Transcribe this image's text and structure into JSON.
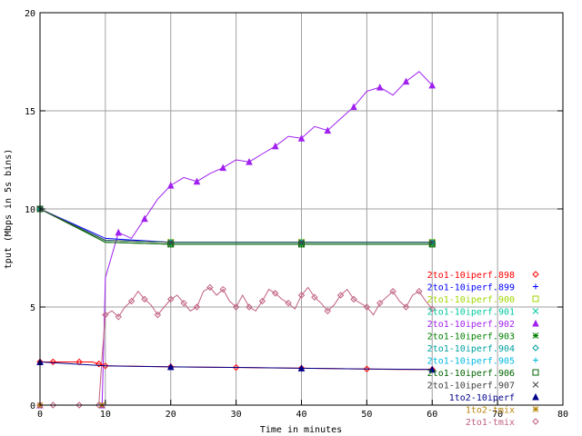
{
  "chart_data": {
    "type": "line",
    "title": "",
    "xlabel": "Time in minutes",
    "ylabel": "tput (Mbps in 5s bins)",
    "xlim": [
      0,
      80
    ],
    "ylim": [
      0,
      20
    ],
    "x_ticks": [
      0,
      10,
      20,
      30,
      40,
      50,
      60,
      70,
      80
    ],
    "y_ticks": [
      0,
      5,
      10,
      15,
      20
    ],
    "grid": true,
    "legend_position": "right",
    "series": [
      {
        "name": "2to1-10iperf.898",
        "color": "#ff0000",
        "marker": "diamond",
        "x": [
          0,
          1,
          2,
          4,
          6,
          8,
          9,
          9.5,
          10,
          15,
          20,
          25,
          30,
          35,
          40,
          45,
          50,
          55,
          60
        ],
        "y": [
          2.2,
          2.2,
          2.2,
          2.2,
          2.2,
          2.2,
          2.1,
          2.05,
          2.0,
          1.98,
          1.95,
          1.93,
          1.92,
          1.9,
          1.88,
          1.86,
          1.84,
          1.82,
          1.82
        ]
      },
      {
        "name": "2to1-10iperf.899",
        "color": "#0000ff",
        "marker": "plus",
        "x": [
          0,
          10,
          20,
          30,
          40,
          50,
          60
        ],
        "y": [
          10,
          8.5,
          8.3,
          8.3,
          8.3,
          8.3,
          8.3
        ]
      },
      {
        "name": "2to1-10iperf.900",
        "color": "#a0d800",
        "marker": "square",
        "x": [
          0,
          10,
          20,
          30,
          40,
          50,
          60
        ],
        "y": [
          10,
          8.4,
          8.3,
          8.3,
          8.3,
          8.3,
          8.3
        ]
      },
      {
        "name": "2to1-10iperf.901",
        "color": "#00c8a0",
        "marker": "x",
        "x": [
          0,
          10,
          20,
          30,
          40,
          50,
          60
        ],
        "y": [
          10,
          8.4,
          8.3,
          8.3,
          8.3,
          8.3,
          8.3
        ]
      },
      {
        "name": "2to1-10iperf.902",
        "color": "#a020f0",
        "marker": "triangle",
        "x": [
          0,
          8,
          9.5,
          10,
          12,
          14,
          16,
          18,
          20,
          22,
          24,
          26,
          28,
          30,
          32,
          34,
          36,
          38,
          40,
          42,
          44,
          46,
          48,
          50,
          52,
          54,
          56,
          58,
          60
        ],
        "y": [
          0,
          0,
          0,
          6.5,
          8.8,
          8.5,
          9.5,
          10.5,
          11.2,
          11.6,
          11.4,
          11.8,
          12.1,
          12.5,
          12.4,
          12.8,
          13.2,
          13.7,
          13.6,
          14.2,
          14.0,
          14.6,
          15.2,
          16.0,
          16.2,
          15.8,
          16.5,
          17.0,
          16.3
        ]
      },
      {
        "name": "2to1-10iperf.903",
        "color": "#008000",
        "marker": "asterisk",
        "x": [
          0,
          10,
          20,
          30,
          40,
          50,
          60
        ],
        "y": [
          10,
          8.3,
          8.2,
          8.2,
          8.2,
          8.2,
          8.2
        ]
      },
      {
        "name": "2to1-10iperf.904",
        "color": "#00a0a0",
        "marker": "diamond",
        "x": [
          0,
          10,
          20,
          30,
          40,
          50,
          60
        ],
        "y": [
          10,
          8.4,
          8.3,
          8.3,
          8.3,
          8.3,
          8.3
        ]
      },
      {
        "name": "2to1-10iperf.905",
        "color": "#00b8e0",
        "marker": "plus",
        "x": [
          0,
          10,
          20,
          30,
          40,
          50,
          60
        ],
        "y": [
          10,
          8.4,
          8.3,
          8.3,
          8.3,
          8.3,
          8.3
        ]
      },
      {
        "name": "2to1-10iperf.906",
        "color": "#006400",
        "marker": "square",
        "x": [
          0,
          10,
          20,
          30,
          40,
          50,
          60
        ],
        "y": [
          10,
          8.3,
          8.2,
          8.2,
          8.2,
          8.2,
          8.2
        ]
      },
      {
        "name": "2to1-10iperf.907",
        "color": "#404040",
        "marker": "x",
        "x": [
          0,
          10,
          20,
          30,
          40,
          50,
          60
        ],
        "y": [
          10,
          8.4,
          8.3,
          8.3,
          8.3,
          8.3,
          8.3
        ]
      },
      {
        "name": "1to2-10iperf",
        "color": "#00008b",
        "marker": "triangle",
        "x": [
          0,
          10,
          20,
          30,
          40,
          50,
          60
        ],
        "y": [
          2.2,
          2.0,
          1.95,
          1.92,
          1.88,
          1.84,
          1.82
        ]
      },
      {
        "name": "1to2-tmix",
        "color": "#b8860b",
        "marker": "asterisk",
        "x": [
          0,
          8,
          9.5
        ],
        "y": [
          0,
          0,
          0
        ]
      },
      {
        "name": "2to1-tmix",
        "color": "#c06080",
        "marker": "diamond",
        "x": [
          0,
          1,
          2,
          4,
          6,
          8,
          9,
          9.5,
          10,
          11,
          12,
          13,
          14,
          15,
          16,
          17,
          18,
          19,
          20,
          21,
          22,
          23,
          24,
          25,
          26,
          27,
          28,
          29,
          30,
          31,
          32,
          33,
          34,
          35,
          36,
          37,
          38,
          39,
          40,
          41,
          42,
          43,
          44,
          45,
          46,
          47,
          48,
          49,
          50,
          51,
          52,
          53,
          54,
          55,
          56,
          57,
          58,
          59,
          60
        ],
        "y": [
          0,
          0,
          0,
          0,
          0,
          0,
          0,
          2.5,
          4.6,
          4.8,
          4.5,
          5.0,
          5.3,
          5.8,
          5.4,
          5.1,
          4.6,
          5.0,
          5.4,
          5.6,
          5.2,
          4.8,
          5.0,
          5.8,
          6.0,
          5.6,
          5.9,
          5.3,
          5.0,
          5.6,
          5.0,
          4.8,
          5.3,
          5.9,
          5.7,
          5.4,
          5.2,
          4.9,
          5.6,
          6.0,
          5.5,
          5.2,
          4.8,
          5.1,
          5.6,
          5.9,
          5.4,
          5.2,
          5.0,
          4.6,
          5.2,
          5.5,
          5.8,
          5.3,
          5.0,
          5.6,
          5.8,
          5.3,
          4.9
        ]
      }
    ]
  }
}
